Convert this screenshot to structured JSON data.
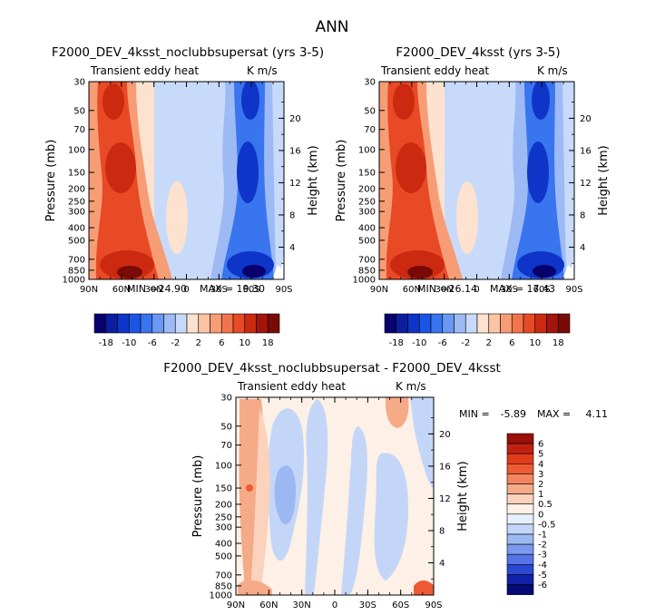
{
  "figure_title": "ANN",
  "chart_data": [
    {
      "type": "heatmap",
      "title": "F2000_DEV_4ksst_noclubbsupersat (yrs 3-5)",
      "left_label": "Transient eddy heat",
      "right_label": "K m/s",
      "ylabel": "Pressure (mb)",
      "ylabel_right": "Height (km)",
      "x_ticks": [
        "90N",
        "60N",
        "30N",
        "0",
        "30S",
        "60S",
        "90S"
      ],
      "y_ticks": [
        "30",
        "50",
        "70",
        "100",
        "150",
        "200",
        "250",
        "300",
        "400",
        "500",
        "700",
        "850",
        "1000"
      ],
      "y_ticks_right": [
        "4",
        "8",
        "12",
        "16",
        "20"
      ],
      "stats": {
        "min_label": "MIN =",
        "min": "-24.90",
        "max_label": "MAX =",
        "max": "19.30"
      },
      "colorbar_labels": [
        "-18",
        "-10",
        "-6",
        "-2",
        "2",
        "6",
        "10",
        "18"
      ]
    },
    {
      "type": "heatmap",
      "title": "F2000_DEV_4ksst (yrs 3-5)",
      "left_label": "Transient eddy heat",
      "right_label": "K m/s",
      "ylabel": "Pressure (mb)",
      "ylabel_right": "Height (km)",
      "x_ticks": [
        "90N",
        "60N",
        "30N",
        "0",
        "30S",
        "60S",
        "90S"
      ],
      "y_ticks": [
        "30",
        "50",
        "70",
        "100",
        "150",
        "200",
        "250",
        "300",
        "400",
        "500",
        "700",
        "850",
        "1000"
      ],
      "y_ticks_right": [
        "4",
        "8",
        "12",
        "16",
        "20"
      ],
      "stats": {
        "min_label": "MIN =",
        "min": "-26.14",
        "max_label": "MAX =",
        "max": "17.43"
      },
      "colorbar_labels": [
        "-18",
        "-10",
        "-6",
        "-2",
        "2",
        "6",
        "10",
        "18"
      ]
    },
    {
      "type": "heatmap",
      "title": "F2000_DEV_4ksst_noclubbsupersat - F2000_DEV_4ksst",
      "left_label": "Transient eddy heat",
      "right_label": "K m/s",
      "ylabel": "Pressure (mb)",
      "ylabel_right": "Height (km)",
      "x_ticks": [
        "90N",
        "60N",
        "30N",
        "0",
        "30S",
        "60S",
        "90S"
      ],
      "y_ticks": [
        "30",
        "50",
        "70",
        "100",
        "150",
        "200",
        "250",
        "300",
        "400",
        "500",
        "700",
        "850",
        "1000"
      ],
      "y_ticks_right": [
        "4",
        "8",
        "12",
        "16",
        "20"
      ],
      "stats": {
        "min_label": "MIN =",
        "min": "-5.89",
        "max_label": "MAX =",
        "max": "4.11"
      },
      "colorbar_labels": [
        "6",
        "5",
        "4",
        "3",
        "2",
        "1",
        "0.5",
        "0",
        "-0.5",
        "-1",
        "-2",
        "-3",
        "-4",
        "-5",
        "-6"
      ]
    }
  ],
  "colors": {
    "diverging": [
      "#08006e",
      "#0b1ea0",
      "#0e35c8",
      "#1a55e6",
      "#3a75f0",
      "#6a98f2",
      "#9dbaf5",
      "#c8dafa",
      "#fde2d0",
      "#fbc4a4",
      "#f79d76",
      "#f2744d",
      "#e84a26",
      "#cc2a10",
      "#a3140a",
      "#7a0a06"
    ],
    "diff": [
      "#9a0f06",
      "#c02010",
      "#e03c1c",
      "#ee5a34",
      "#f2855e",
      "#f5aa88",
      "#fbd2bc",
      "#fdf0e6",
      "#e6f0fc",
      "#c4d6f8",
      "#9cb8f2",
      "#7a98ee",
      "#5474e6",
      "#2a48d2",
      "#1022a8",
      "#040a76"
    ]
  }
}
